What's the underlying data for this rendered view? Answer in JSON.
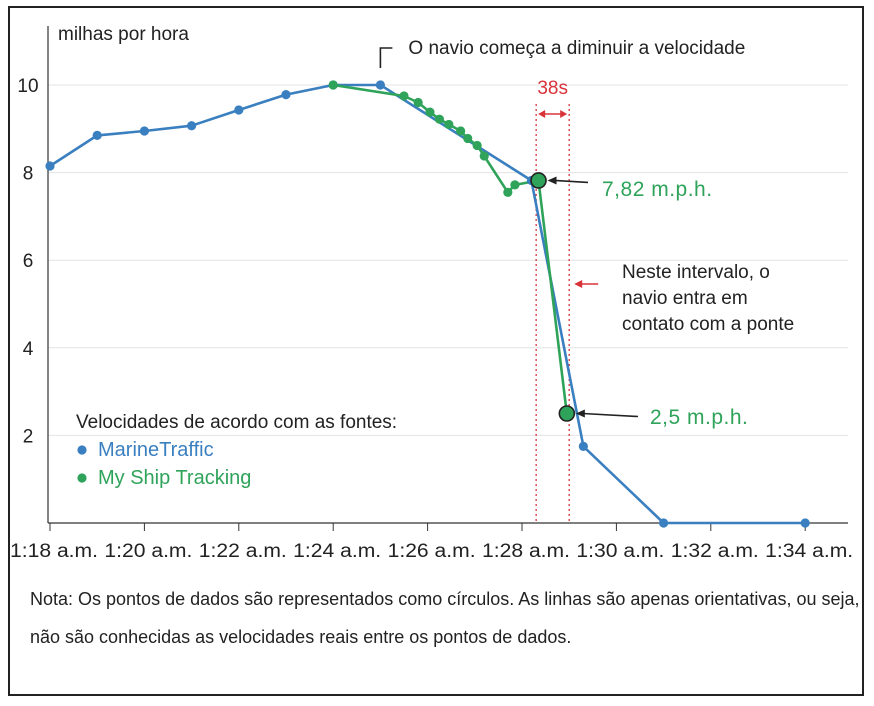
{
  "chart_data": {
    "type": "line",
    "ylabel": "milhas por hora",
    "ylim": [
      0,
      11
    ],
    "yticks": [
      2,
      4,
      6,
      8,
      10
    ],
    "xlim": [
      0,
      16.6
    ],
    "x_tick_values": [
      0,
      2,
      4,
      6,
      8,
      10,
      12,
      14,
      16
    ],
    "x_tick_labels": [
      "1:18 a.m.",
      "1:20 a.m.",
      "1:22 a.m.",
      "1:24 a.m.",
      "1:26 a.m.",
      "1:28 a.m.",
      "1:30 a.m.",
      "1:32 a.m.",
      "1:34 a.m."
    ],
    "x_unit_note": "minutes after 1:18 a.m.",
    "grid": "horizontal",
    "legend_title": "Velocidades de acordo com as fontes:",
    "series": [
      {
        "name": "MarineTraffic",
        "color": "#3a7fc0",
        "points": [
          [
            0,
            8.15
          ],
          [
            1,
            8.85
          ],
          [
            2,
            8.95
          ],
          [
            3,
            9.07
          ],
          [
            4,
            9.43
          ],
          [
            5,
            9.78
          ],
          [
            6,
            10.0
          ],
          [
            7,
            10.0
          ],
          [
            10.2,
            7.82
          ],
          [
            11.3,
            1.75
          ],
          [
            13.0,
            0.0
          ],
          [
            16.0,
            0.0
          ]
        ]
      },
      {
        "name": "My Ship Tracking",
        "color": "#2fa35a",
        "points": [
          [
            6.0,
            10.0
          ],
          [
            7.5,
            9.75
          ],
          [
            7.8,
            9.6
          ],
          [
            8.05,
            9.38
          ],
          [
            8.25,
            9.22
          ],
          [
            8.45,
            9.1
          ],
          [
            8.7,
            8.95
          ],
          [
            8.85,
            8.78
          ],
          [
            9.05,
            8.62
          ],
          [
            9.2,
            8.38
          ],
          [
            9.7,
            7.55
          ],
          [
            9.85,
            7.72
          ],
          [
            10.35,
            7.82
          ],
          [
            10.95,
            2.5
          ]
        ]
      }
    ],
    "highlighted_points": [
      {
        "x": 10.35,
        "y": 7.82,
        "label": "7,82 m.p.h."
      },
      {
        "x": 10.95,
        "y": 2.5,
        "label": "2,5 m.p.h."
      }
    ],
    "annotations": {
      "slowdown": "O navio começa a diminuir a velocidade",
      "interval": "38s",
      "contact_line1": "Neste intervalo, o",
      "contact_line2": "navio entra em",
      "contact_line3": "contato com a ponte"
    },
    "vertical_markers": [
      10.3,
      11.0
    ],
    "note": "Nota: Os pontos de dados são representados como círculos. As linhas são apenas orientativas, ou seja, não são conhecidas as velocidades reais entre os pontos de dados."
  }
}
